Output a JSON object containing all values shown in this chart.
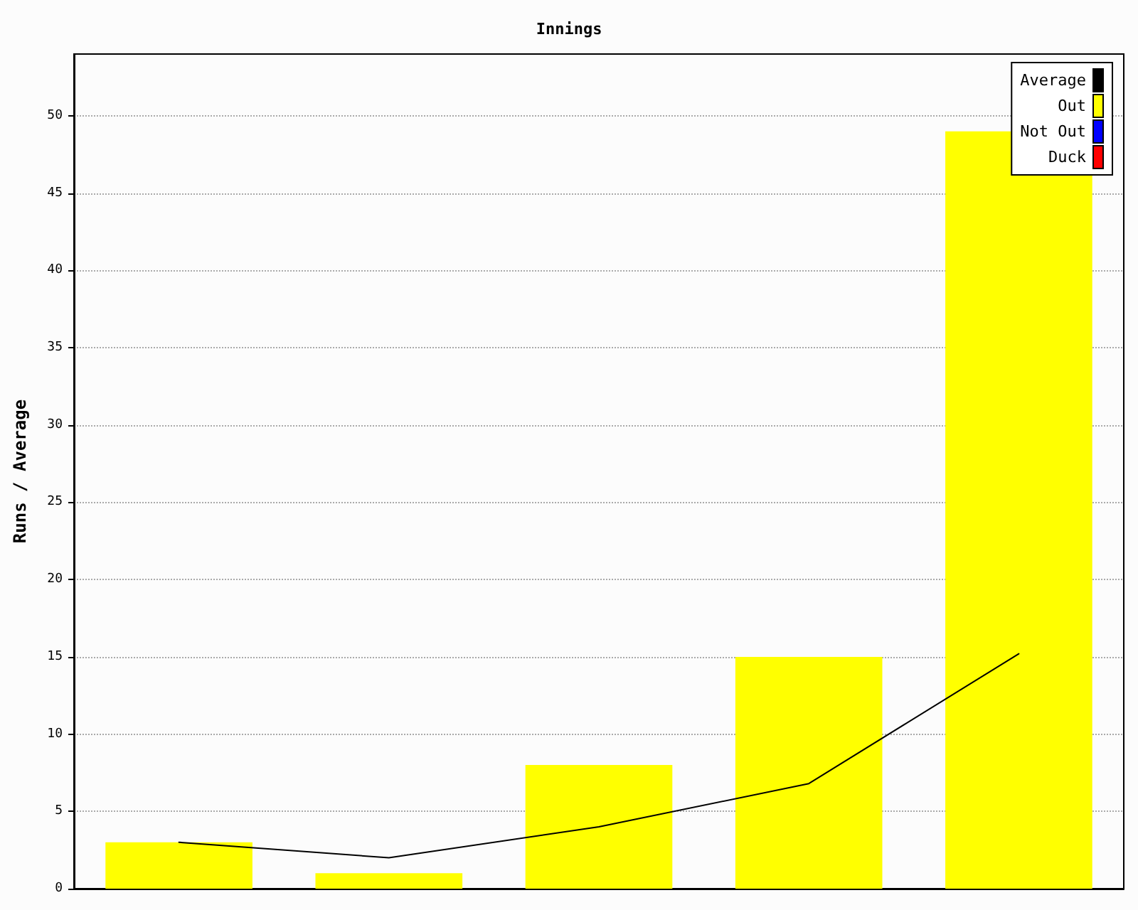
{
  "chart_data": {
    "type": "bar",
    "title": "Innings",
    "ylabel": "Runs / Average",
    "categories": [
      null,
      null,
      null,
      null,
      null
    ],
    "series": [
      {
        "name": "Average",
        "type": "line",
        "color": "#000000",
        "values": [
          3,
          2,
          4,
          6.8,
          15.2
        ]
      },
      {
        "name": "Out",
        "color": "#ffff00",
        "values": [
          3,
          1,
          8,
          15,
          49
        ]
      },
      {
        "name": "Not Out",
        "color": "#0000ff",
        "values": [
          null,
          null,
          null,
          null,
          null
        ]
      },
      {
        "name": "Duck",
        "color": "#ff0000",
        "values": [
          null,
          null,
          null,
          null,
          null
        ]
      }
    ],
    "stacked": true,
    "ylim": [
      0,
      54
    ],
    "yticks": [
      0,
      5,
      10,
      15,
      20,
      25,
      30,
      35,
      40,
      45,
      50
    ],
    "grid": "y",
    "legend": "top right",
    "marker": "none",
    "line_style": "solid"
  }
}
